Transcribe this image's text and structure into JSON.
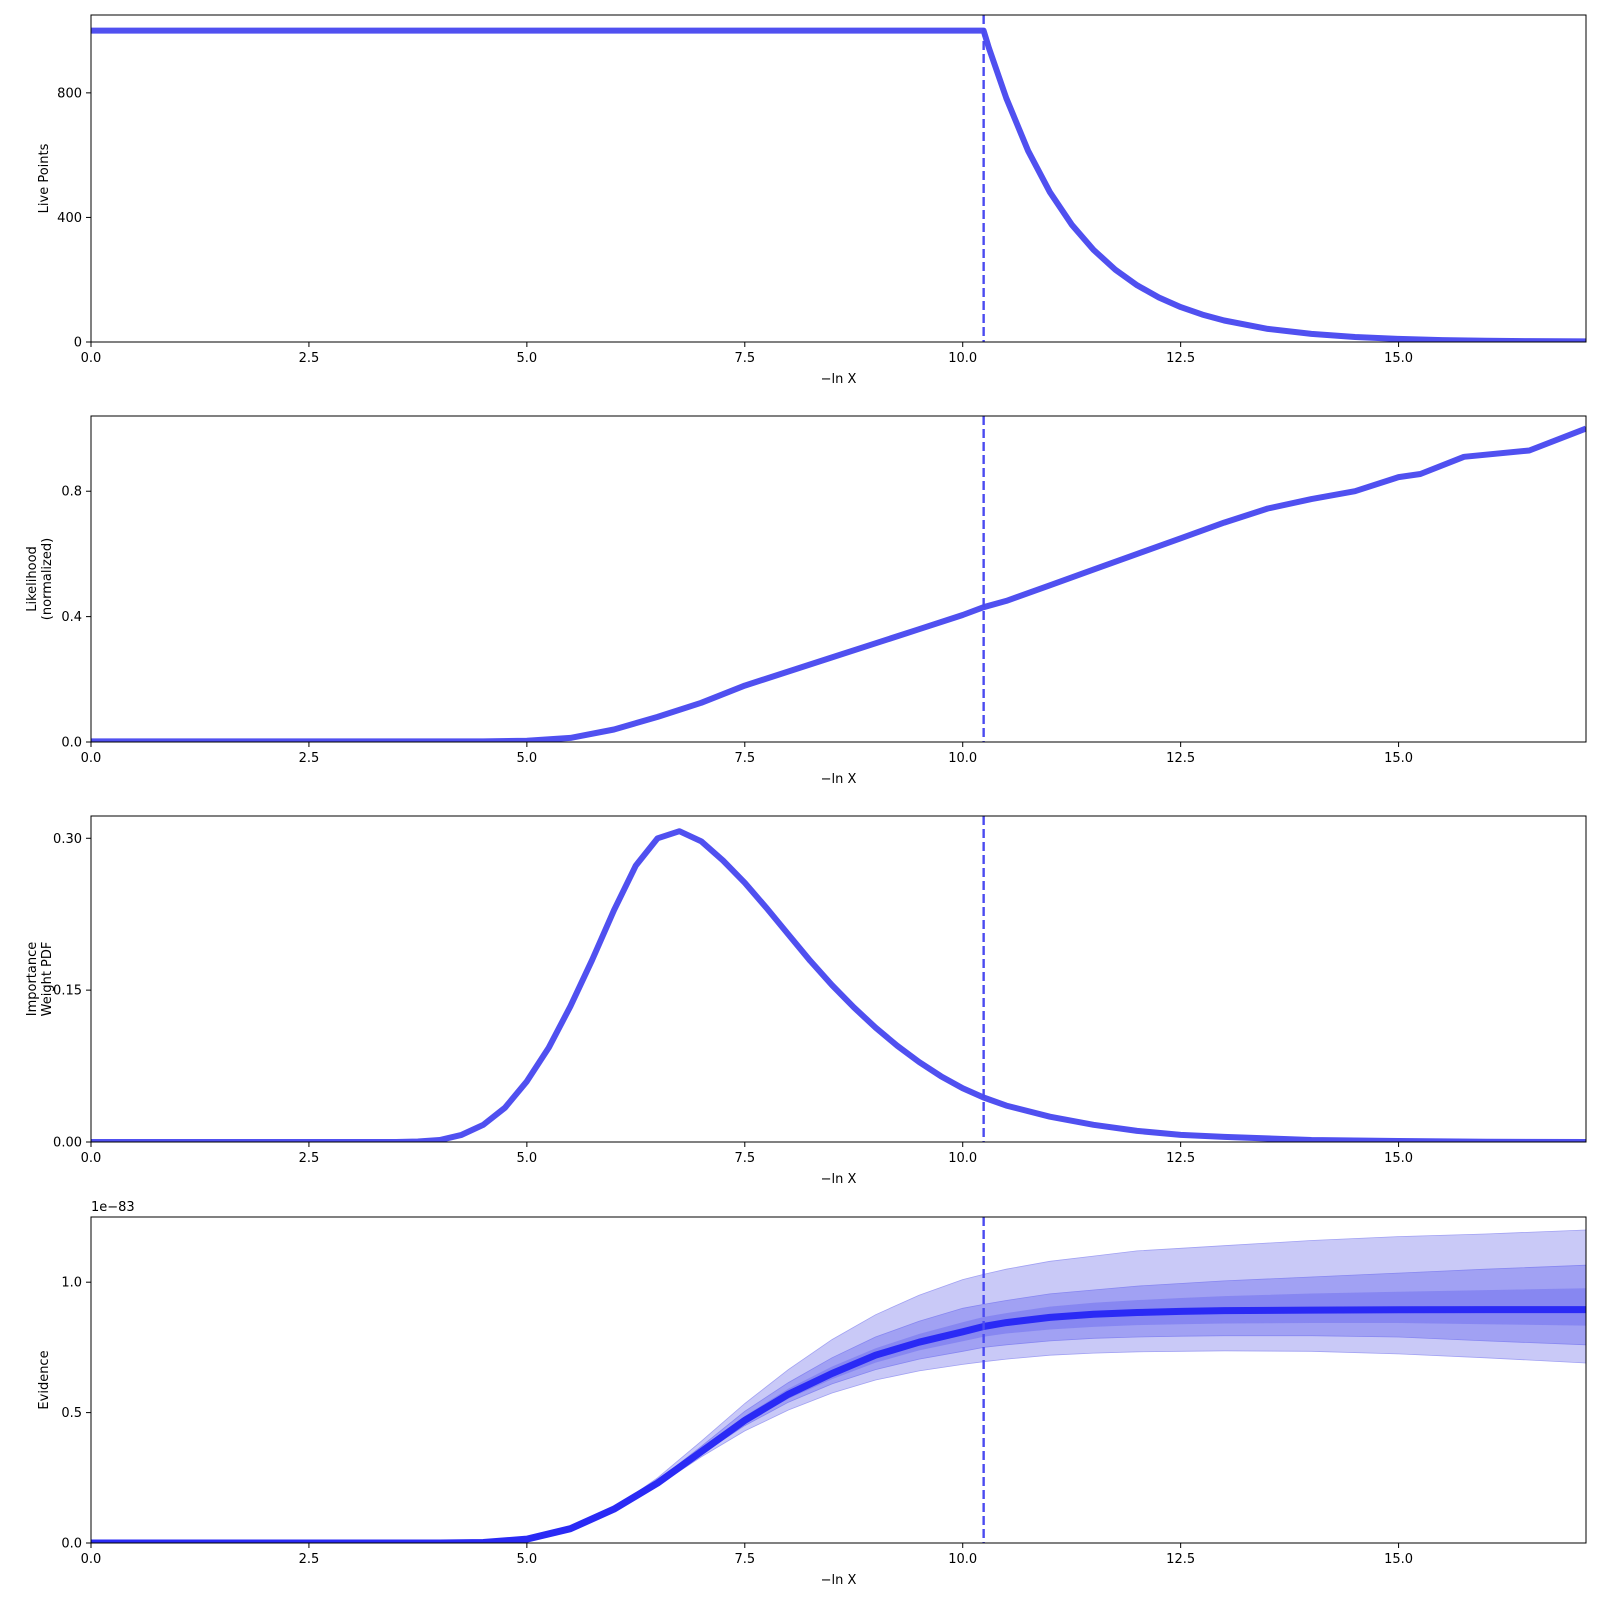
{
  "chart_data": [
    {
      "type": "line",
      "panel": "live-points",
      "ylabel": [
        "Live Points"
      ],
      "xlabel": "−ln X",
      "xlim": [
        0,
        17.15
      ],
      "ylim": [
        0,
        1050
      ],
      "xticks": [
        0,
        2.5,
        5,
        7.5,
        10,
        12.5,
        15
      ],
      "xtick_labels": [
        "0.0",
        "2.5",
        "5.0",
        "7.5",
        "10.0",
        "12.5",
        "15.0"
      ],
      "yticks": [
        0,
        400,
        800
      ],
      "ytick_labels": [
        "0",
        "400",
        "800"
      ],
      "line_color": "#5050f0",
      "vline_x": 10.24,
      "x": [
        0,
        10.24,
        10.3,
        10.5,
        10.75,
        11.0,
        11.25,
        11.5,
        11.75,
        12.0,
        12.25,
        12.5,
        12.75,
        13.0,
        13.5,
        14.0,
        14.5,
        15.0,
        15.5,
        16.0,
        16.5,
        17.15
      ],
      "y": [
        1000,
        1000,
        944,
        783,
        614,
        481,
        377,
        296,
        232,
        182,
        143,
        112,
        88,
        69,
        42,
        26,
        16,
        10,
        6,
        4,
        3,
        2
      ]
    },
    {
      "type": "line",
      "panel": "likelihood",
      "ylabel": [
        "Likelihood",
        "(normalized)"
      ],
      "xlabel": "−ln X",
      "xlim": [
        0,
        17.15
      ],
      "ylim": [
        0,
        1.04
      ],
      "xticks": [
        0,
        2.5,
        5,
        7.5,
        10,
        12.5,
        15
      ],
      "xtick_labels": [
        "0.0",
        "2.5",
        "5.0",
        "7.5",
        "10.0",
        "12.5",
        "15.0"
      ],
      "yticks": [
        0,
        0.4,
        0.8
      ],
      "ytick_labels": [
        "0.0",
        "0.4",
        "0.8"
      ],
      "line_color": "#5050f0",
      "vline_x": 10.24,
      "x": [
        0,
        4.5,
        5.0,
        5.5,
        6.0,
        6.5,
        7.0,
        7.5,
        8.0,
        8.5,
        9.0,
        9.5,
        10.0,
        10.24,
        10.5,
        11.0,
        11.5,
        12.0,
        12.5,
        13.0,
        13.5,
        14.0,
        14.5,
        15.0,
        15.25,
        15.75,
        16.5,
        17.15
      ],
      "y": [
        0.002,
        0.002,
        0.004,
        0.013,
        0.04,
        0.08,
        0.125,
        0.18,
        0.225,
        0.27,
        0.315,
        0.36,
        0.405,
        0.43,
        0.45,
        0.5,
        0.55,
        0.6,
        0.65,
        0.7,
        0.745,
        0.775,
        0.8,
        0.845,
        0.855,
        0.91,
        0.93,
        1.0
      ]
    },
    {
      "type": "line",
      "panel": "importance-weight",
      "ylabel": [
        "Importance",
        "Weight PDF"
      ],
      "xlabel": "−ln X",
      "xlim": [
        0,
        17.15
      ],
      "ylim": [
        0,
        0.322
      ],
      "xticks": [
        0,
        2.5,
        5,
        7.5,
        10,
        12.5,
        15
      ],
      "xtick_labels": [
        "0.0",
        "2.5",
        "5.0",
        "7.5",
        "10.0",
        "12.5",
        "15.0"
      ],
      "yticks": [
        0,
        0.15,
        0.3
      ],
      "ytick_labels": [
        "0.00",
        "0.15",
        "0.30"
      ],
      "line_color": "#5050f0",
      "vline_x": 10.24,
      "x": [
        0,
        3.5,
        3.75,
        4.0,
        4.25,
        4.5,
        4.75,
        5.0,
        5.25,
        5.5,
        5.75,
        6.0,
        6.25,
        6.5,
        6.75,
        7.0,
        7.25,
        7.5,
        7.75,
        8.0,
        8.25,
        8.5,
        8.75,
        9.0,
        9.25,
        9.5,
        9.75,
        10.0,
        10.24,
        10.5,
        11.0,
        11.5,
        12.0,
        12.5,
        13.0,
        14.0,
        15.0,
        16.0,
        17.15
      ],
      "y": [
        0,
        0,
        0.0005,
        0.002,
        0.007,
        0.017,
        0.034,
        0.06,
        0.093,
        0.134,
        0.18,
        0.229,
        0.273,
        0.3,
        0.307,
        0.297,
        0.278,
        0.256,
        0.231,
        0.205,
        0.179,
        0.155,
        0.133,
        0.113,
        0.095,
        0.079,
        0.065,
        0.053,
        0.044,
        0.036,
        0.025,
        0.017,
        0.011,
        0.007,
        0.005,
        0.002,
        0.001,
        0.0003,
        0
      ]
    },
    {
      "type": "area",
      "panel": "evidence",
      "ylabel": [
        "Evidence"
      ],
      "xlabel": "−ln X",
      "offset_label": "1e−83",
      "xlim": [
        0,
        17.15
      ],
      "ylim": [
        0,
        1.25
      ],
      "xticks": [
        0,
        2.5,
        5,
        7.5,
        10,
        12.5,
        15
      ],
      "xtick_labels": [
        "0.0",
        "2.5",
        "5.0",
        "7.5",
        "10.0",
        "12.5",
        "15.0"
      ],
      "yticks": [
        0,
        0.5,
        1.0
      ],
      "ytick_labels": [
        "0.0",
        "0.5",
        "1.0"
      ],
      "line_color": "#2a2af5",
      "band_colors": [
        "#c9c9f7",
        "#a1a1f3",
        "#8787f1"
      ],
      "vline_x": 10.24,
      "x": [
        0,
        4.0,
        4.5,
        5.0,
        5.5,
        6.0,
        6.5,
        7.0,
        7.5,
        8.0,
        8.5,
        9.0,
        9.5,
        10.0,
        10.24,
        10.5,
        11.0,
        11.5,
        12.0,
        12.5,
        13.0,
        14.0,
        15.0,
        16.0,
        17.15
      ],
      "series": [
        {
          "name": "",
          "values": [
            0,
            0,
            0.002,
            0.015,
            0.055,
            0.13,
            0.23,
            0.35,
            0.47,
            0.57,
            0.65,
            0.72,
            0.77,
            0.81,
            0.83,
            0.845,
            0.865,
            0.877,
            0.884,
            0.888,
            0.891,
            0.893,
            0.894,
            0.895,
            0.895
          ]
        },
        {
          "name": "",
          "lower": [
            0,
            0,
            0.002,
            0.015,
            0.055,
            0.127,
            0.22,
            0.33,
            0.43,
            0.51,
            0.575,
            0.625,
            0.66,
            0.685,
            0.695,
            0.705,
            0.72,
            0.728,
            0.733,
            0.735,
            0.737,
            0.735,
            0.725,
            0.71,
            0.69
          ],
          "upper": [
            0,
            0,
            0.002,
            0.015,
            0.055,
            0.133,
            0.25,
            0.39,
            0.535,
            0.665,
            0.78,
            0.875,
            0.95,
            1.01,
            1.03,
            1.05,
            1.08,
            1.1,
            1.12,
            1.13,
            1.14,
            1.16,
            1.175,
            1.185,
            1.2
          ]
        },
        {
          "name": "",
          "lower": [
            0,
            0,
            0.002,
            0.015,
            0.055,
            0.128,
            0.225,
            0.34,
            0.45,
            0.54,
            0.61,
            0.665,
            0.705,
            0.735,
            0.75,
            0.76,
            0.775,
            0.785,
            0.79,
            0.793,
            0.795,
            0.795,
            0.79,
            0.775,
            0.76
          ],
          "upper": [
            0,
            0,
            0.002,
            0.015,
            0.055,
            0.132,
            0.24,
            0.37,
            0.505,
            0.615,
            0.71,
            0.79,
            0.85,
            0.9,
            0.915,
            0.93,
            0.955,
            0.97,
            0.985,
            0.995,
            1.005,
            1.02,
            1.035,
            1.05,
            1.065
          ]
        },
        {
          "name": "",
          "lower": [
            0,
            0,
            0.002,
            0.015,
            0.055,
            0.129,
            0.228,
            0.345,
            0.46,
            0.555,
            0.63,
            0.693,
            0.74,
            0.775,
            0.792,
            0.805,
            0.82,
            0.83,
            0.837,
            0.84,
            0.843,
            0.845,
            0.845,
            0.84,
            0.835
          ],
          "upper": [
            0,
            0,
            0.002,
            0.015,
            0.055,
            0.131,
            0.234,
            0.358,
            0.485,
            0.59,
            0.675,
            0.745,
            0.8,
            0.845,
            0.865,
            0.88,
            0.905,
            0.92,
            0.93,
            0.938,
            0.945,
            0.955,
            0.962,
            0.968,
            0.975
          ]
        }
      ]
    }
  ]
}
